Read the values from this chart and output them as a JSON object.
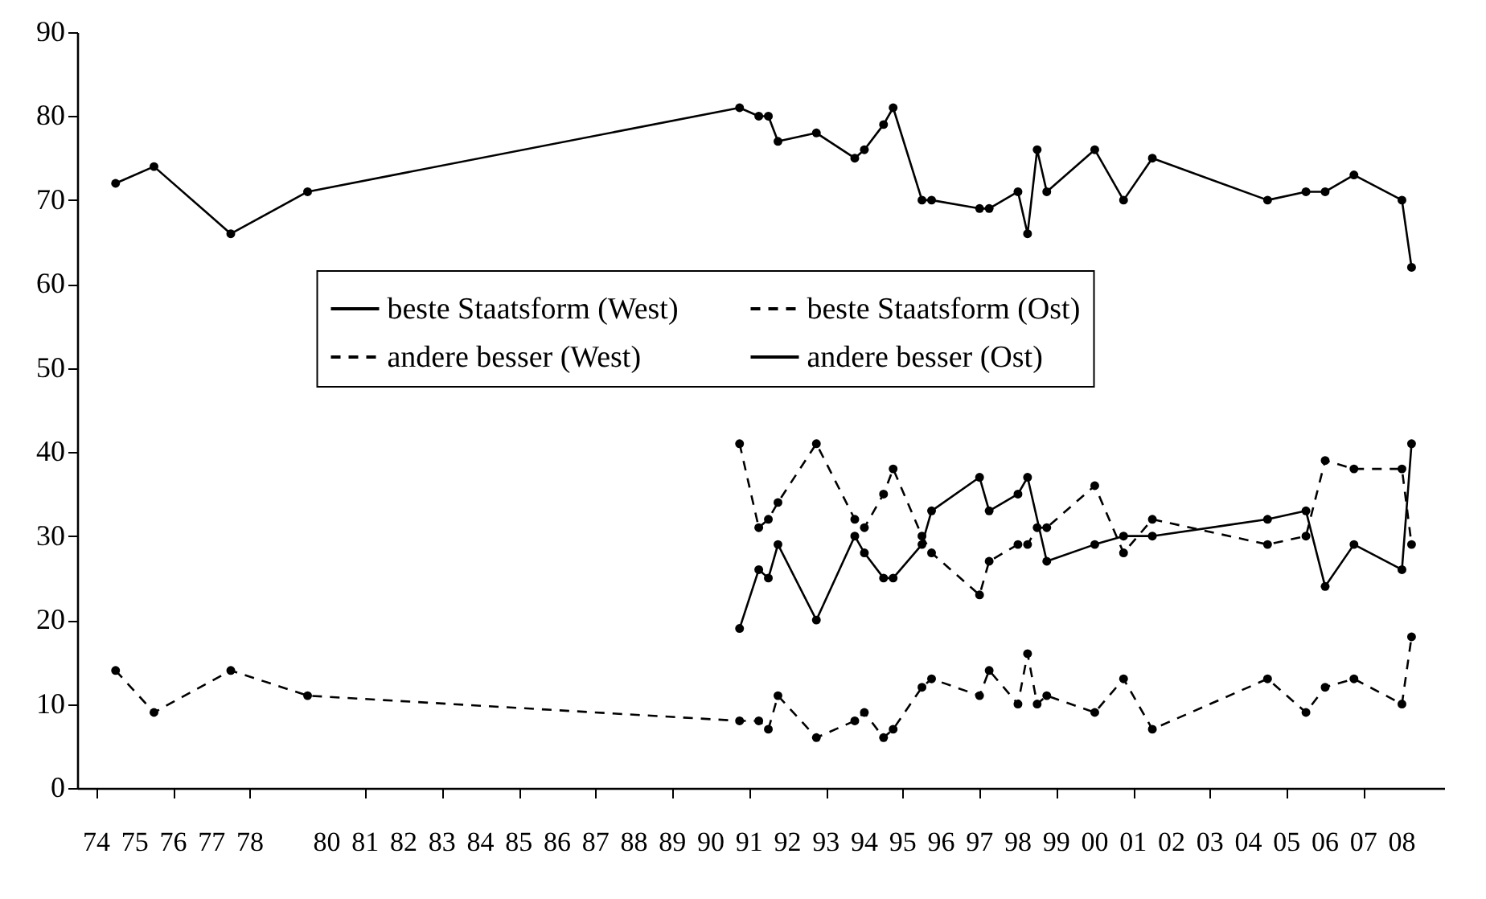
{
  "chart_data": {
    "type": "line",
    "x": [
      1974.5,
      1975.5,
      1977.5,
      1979.5,
      1990.75,
      1991.25,
      1991.5,
      1991.75,
      1992.75,
      1993.75,
      1994,
      1994.5,
      1994.75,
      1995.5,
      1995.75,
      1997,
      1997.25,
      1998,
      1998.25,
      1998.5,
      1998.75,
      2000,
      2000.75,
      2001.5,
      2004.5,
      2005.5,
      2006,
      2006.75,
      2008,
      2008.25
    ],
    "xlim": [
      1973.5,
      2009.1
    ],
    "xticks": [
      {
        "value": 1974,
        "label": "74"
      },
      {
        "value": 1975,
        "label": "75"
      },
      {
        "value": 1976,
        "label": "76"
      },
      {
        "value": 1977,
        "label": "77"
      },
      {
        "value": 1978,
        "label": "78"
      },
      {
        "value": 1980,
        "label": "80"
      },
      {
        "value": 1981,
        "label": "81"
      },
      {
        "value": 1982,
        "label": "82"
      },
      {
        "value": 1983,
        "label": "83"
      },
      {
        "value": 1984,
        "label": "84"
      },
      {
        "value": 1985,
        "label": "85"
      },
      {
        "value": 1986,
        "label": "86"
      },
      {
        "value": 1987,
        "label": "87"
      },
      {
        "value": 1988,
        "label": "88"
      },
      {
        "value": 1989,
        "label": "89"
      },
      {
        "value": 1990,
        "label": "90"
      },
      {
        "value": 1991,
        "label": "91"
      },
      {
        "value": 1992,
        "label": "92"
      },
      {
        "value": 1993,
        "label": "93"
      },
      {
        "value": 1994,
        "label": "94"
      },
      {
        "value": 1995,
        "label": "95"
      },
      {
        "value": 1996,
        "label": "96"
      },
      {
        "value": 1997,
        "label": "97"
      },
      {
        "value": 1998,
        "label": "98"
      },
      {
        "value": 1999,
        "label": "99"
      },
      {
        "value": 2000,
        "label": "00"
      },
      {
        "value": 2001,
        "label": "01"
      },
      {
        "value": 2002,
        "label": "02"
      },
      {
        "value": 2003,
        "label": "03"
      },
      {
        "value": 2004,
        "label": "04"
      },
      {
        "value": 2005,
        "label": "05"
      },
      {
        "value": 2006,
        "label": "06"
      },
      {
        "value": 2007,
        "label": "07"
      },
      {
        "value": 2008,
        "label": "08"
      }
    ],
    "ylim": [
      0,
      90
    ],
    "yticks": [
      0,
      10,
      20,
      30,
      40,
      50,
      60,
      70,
      80,
      90
    ],
    "grid": false,
    "legend": "center",
    "marker": "circle",
    "series": [
      {
        "name": "beste Staatsform (West)",
        "color": "#000000",
        "line_style": "solid",
        "values": [
          72,
          74,
          66,
          71,
          81,
          80,
          80,
          77,
          78,
          75,
          76,
          79,
          81,
          70,
          70,
          69,
          69,
          71,
          66,
          76,
          71,
          76,
          70,
          75,
          70,
          71,
          71,
          73,
          70,
          62
        ]
      },
      {
        "name": "andere besser (West)",
        "color": "#000000",
        "line_style": "dashed",
        "values": [
          14,
          9,
          14,
          11,
          8,
          8,
          7,
          11,
          6,
          8,
          9,
          6,
          7,
          12,
          13,
          11,
          14,
          10,
          16,
          10,
          11,
          9,
          13,
          7,
          13,
          9,
          12,
          13,
          10,
          18
        ]
      },
      {
        "name": "beste Staatsform (Ost)",
        "color": "#000000",
        "line_style": "dashed",
        "x": [
          1990.75,
          1991.25,
          1991.5,
          1991.75,
          1992.75,
          1993.75,
          1994,
          1994.5,
          1994.75,
          1995.5,
          1995.75,
          1997,
          1997.25,
          1998,
          1998.25,
          1998.5,
          1998.75,
          2000,
          2000.75,
          2001.5,
          2004.5,
          2005.5,
          2006,
          2006.75,
          2008,
          2008.25
        ],
        "values": [
          41,
          31,
          32,
          34,
          41,
          32,
          31,
          35,
          38,
          30,
          28,
          23,
          27,
          29,
          29,
          31,
          31,
          36,
          28,
          32,
          29,
          30,
          39,
          38,
          38,
          29
        ]
      },
      {
        "name": "andere besser (Ost)",
        "color": "#000000",
        "line_style": "solid",
        "x": [
          1990.75,
          1991.25,
          1991.5,
          1991.75,
          1992.75,
          1993.75,
          1994,
          1994.5,
          1994.75,
          1995.5,
          1995.75,
          1997,
          1997.25,
          1998,
          1998.25,
          1998.75,
          2000,
          2000.75,
          2001.5,
          2004.5,
          2005.5,
          2006,
          2006.75,
          2008,
          2008.25
        ],
        "values": [
          19,
          26,
          25,
          29,
          20,
          30,
          28,
          25,
          25,
          29,
          33,
          37,
          33,
          35,
          37,
          27,
          29,
          30,
          30,
          32,
          33,
          24,
          29,
          26,
          41
        ]
      }
    ]
  }
}
